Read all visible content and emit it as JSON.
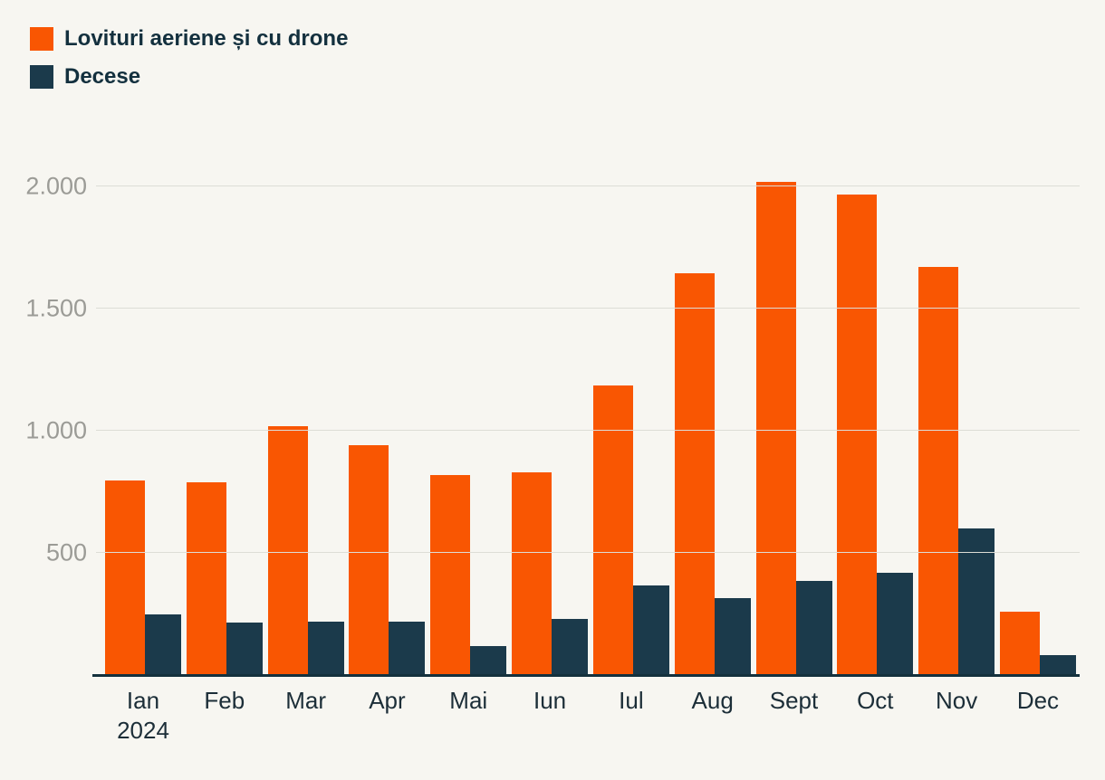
{
  "background": "#f7f6f1",
  "legend": {
    "items": [
      {
        "label": "Lovituri aeriene și cu drone",
        "color": "#f95602"
      },
      {
        "label": "Decese",
        "color": "#1b3a4b"
      }
    ]
  },
  "chart_data": {
    "type": "bar",
    "categories": [
      "Ian",
      "Feb",
      "Mar",
      "Apr",
      "Mai",
      "Iun",
      "Iul",
      "Aug",
      "Sept",
      "Oct",
      "Nov",
      "Dec"
    ],
    "x_sublabel": {
      "index": 0,
      "text": "2024"
    },
    "series": [
      {
        "name": "Lovituri aeriene și cu drone",
        "color": "#f95602",
        "values": [
          795,
          790,
          1020,
          940,
          820,
          830,
          1185,
          1645,
          2020,
          1965,
          1670,
          260
        ]
      },
      {
        "name": "Decese",
        "color": "#1b3a4b",
        "values": [
          250,
          215,
          220,
          220,
          120,
          230,
          365,
          315,
          385,
          420,
          600,
          80
        ]
      }
    ],
    "yticks": [
      {
        "value": 500,
        "label": "500"
      },
      {
        "value": 1000,
        "label": "1.000"
      },
      {
        "value": 1500,
        "label": "1.500"
      },
      {
        "value": 2000,
        "label": "2.000"
      }
    ],
    "ylim": [
      0,
      2170
    ],
    "grid": true,
    "legend_position": "top-left",
    "title": "",
    "xlabel": "",
    "ylabel": ""
  }
}
